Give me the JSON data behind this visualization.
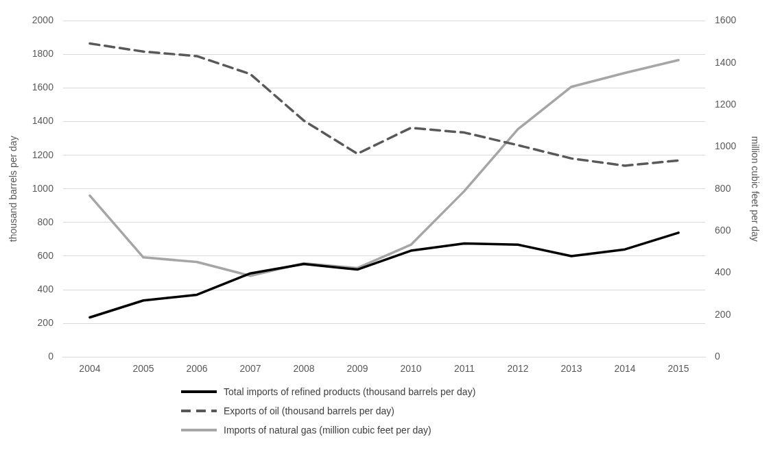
{
  "chart_data": {
    "type": "line",
    "ylabel": "thousand barrels per day",
    "y2label": "million cubic feet per day",
    "categories": [
      "2004",
      "2005",
      "2006",
      "2007",
      "2008",
      "2009",
      "2010",
      "2011",
      "2012",
      "2013",
      "2014",
      "2015"
    ],
    "series": [
      {
        "name": "Total imports of refined products (thousand barrels per day)",
        "color": "#000000",
        "line_style": "solid",
        "values": [
          235,
          336,
          370,
          497,
          553,
          520,
          632,
          675,
          668,
          600,
          640,
          739
        ]
      },
      {
        "name": "Exports of oil (thousand barrels per day)",
        "color": "#595959",
        "line_style": "dashed",
        "values": [
          1865,
          1817,
          1790,
          1683,
          1406,
          1209,
          1363,
          1335,
          1260,
          1181,
          1138,
          1169
        ]
      },
      {
        "name": "Imports of natural gas (million cubic feet per day)",
        "color": "#a6a6a6",
        "line_style": "solid",
        "axis": "y2",
        "values": [
          768,
          474,
          452,
          386,
          446,
          423,
          534,
          790,
          1084,
          1286,
          1352,
          1413
        ]
      }
    ],
    "ylim": [
      0,
      2000
    ],
    "yticks": [
      0,
      200,
      400,
      600,
      800,
      1000,
      1200,
      1400,
      1600,
      1800,
      2000
    ],
    "y2lim": [
      0,
      1600
    ],
    "y2ticks": [
      0,
      200,
      400,
      600,
      800,
      1000,
      1200,
      1400,
      1600
    ],
    "grid": "y",
    "legend": "bottom",
    "marker": "none"
  }
}
